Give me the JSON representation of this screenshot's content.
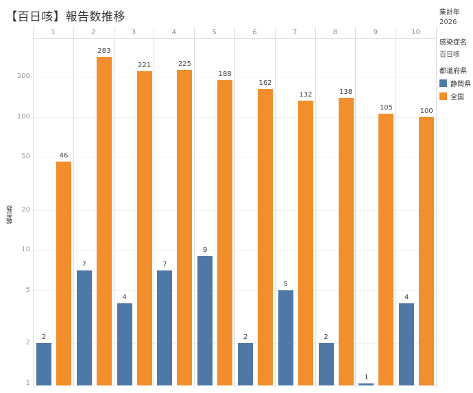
{
  "title": "【百日咳】報告数推移",
  "filters": {
    "year_label": "集計年",
    "year_value": "2026",
    "disease_label": "感染症名",
    "disease_value": "百日咳"
  },
  "legend": {
    "title": "都道府県",
    "items": [
      {
        "label": "静岡県",
        "color": "#4e79a7"
      },
      {
        "label": "全国",
        "color": "#f28e2b"
      }
    ]
  },
  "chart_data": {
    "type": "bar",
    "title": "【百日咳】報告数推移",
    "xlabel": "",
    "ylabel": "報告数",
    "yscale": "log",
    "ylim": [
      1,
      300
    ],
    "yticks": [
      1,
      2,
      5,
      10,
      20,
      50,
      100,
      200
    ],
    "grid": true,
    "legend_position": "right",
    "categories": [
      "1",
      "2",
      "3",
      "4",
      "5",
      "6",
      "7",
      "8",
      "9",
      "10"
    ],
    "series": [
      {
        "name": "静岡県",
        "color": "#4e79a7",
        "values": [
          2,
          7,
          4,
          7,
          9,
          2,
          5,
          2,
          1,
          4
        ]
      },
      {
        "name": "全国",
        "color": "#f28e2b",
        "values": [
          46,
          283,
          221,
          225,
          188,
          162,
          132,
          138,
          105,
          100
        ]
      }
    ]
  }
}
